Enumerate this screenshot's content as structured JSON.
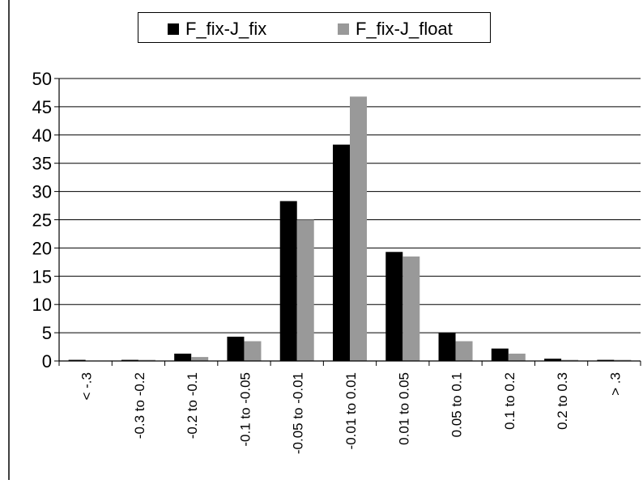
{
  "chart_data": {
    "type": "bar",
    "categories": [
      "< -.3",
      "-0.3 to -0.2",
      "-0.2 to -0.1",
      "-0.1 to -0.05",
      "-0.05 to -0.01",
      "-0.01 to 0.01",
      "0.01 to 0.05",
      "0.05 to 0.1",
      "0.1 to 0.2",
      "0.2 to 0.3",
      "> .3"
    ],
    "series": [
      {
        "name": "F_fix-J_fix",
        "color": "#000000",
        "values": [
          0.2,
          0.2,
          1.3,
          4.3,
          28.3,
          38.3,
          19.3,
          5.0,
          2.2,
          0.4,
          0.2
        ]
      },
      {
        "name": "F_fix-J_float",
        "color": "#999999",
        "values": [
          0.0,
          0.2,
          0.7,
          3.5,
          25.0,
          46.8,
          18.5,
          3.5,
          1.3,
          0.2,
          0.2
        ]
      }
    ],
    "yticks": [
      0,
      5,
      10,
      15,
      20,
      25,
      30,
      35,
      40,
      45,
      50
    ],
    "ylim": [
      0,
      50
    ],
    "grid": true,
    "legend_position": "top"
  }
}
